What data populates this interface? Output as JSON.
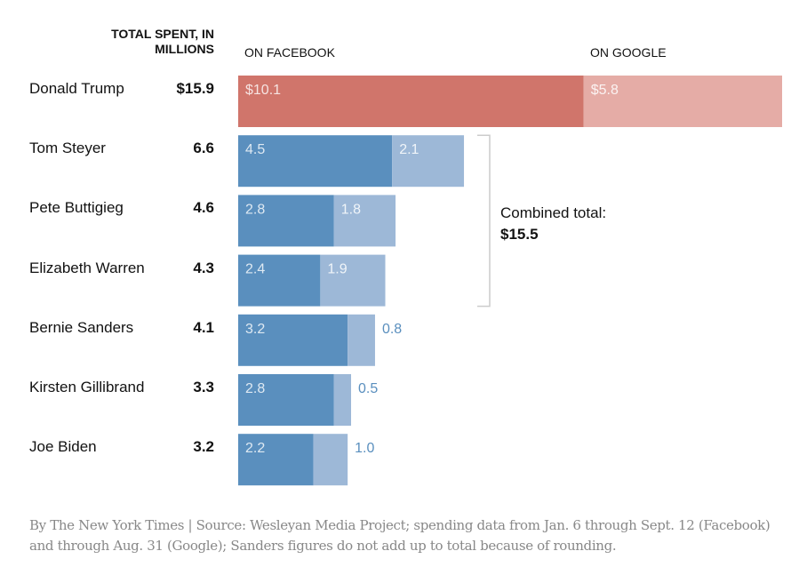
{
  "chart_data": {
    "type": "bar",
    "orientation": "horizontal",
    "stacked": true,
    "title": "",
    "header_total": "TOTAL SPENT, IN MILLIONS",
    "header_series": [
      "ON FACEBOOK",
      "ON GOOGLE"
    ],
    "xlabel": "",
    "ylabel": "",
    "categories": [
      "Donald Trump",
      "Tom Steyer",
      "Pete Buttigieg",
      "Elizabeth Warren",
      "Bernie Sanders",
      "Kirsten Gillibrand",
      "Joe Biden"
    ],
    "totals": [
      "$15.9",
      "6.6",
      "4.6",
      "4.3",
      "4.1",
      "3.3",
      "3.2"
    ],
    "total_values": [
      15.9,
      6.6,
      4.6,
      4.3,
      4.1,
      3.3,
      3.2
    ],
    "series": [
      {
        "name": "ON FACEBOOK",
        "values": [
          10.1,
          4.5,
          2.8,
          2.4,
          3.2,
          2.8,
          2.2
        ],
        "labels": [
          "$10.1",
          "4.5",
          "2.8",
          "2.4",
          "3.2",
          "2.8",
          "2.2"
        ]
      },
      {
        "name": "ON GOOGLE",
        "values": [
          5.8,
          2.1,
          1.8,
          1.9,
          0.8,
          0.5,
          1.0
        ],
        "labels": [
          "$5.8",
          "2.1",
          "1.8",
          "1.9",
          "0.8",
          "0.5",
          "1.0"
        ]
      }
    ],
    "colors": {
      "republican_facebook": "#d0756b",
      "republican_google": "#e5aca6",
      "democrat_facebook": "#5a8fbe",
      "democrat_google": "#9db8d7",
      "outside_label": "#5a8fbe",
      "inside_label": "#ffffff",
      "bracket": "#cccccc"
    },
    "xlim": [
      0,
      15.9
    ],
    "annotation": {
      "text": "Combined total:",
      "value": "$15.5",
      "spans": [
        "Tom Steyer",
        "Pete Buttigieg",
        "Elizabeth Warren"
      ]
    }
  },
  "footer": "By The New York Times | Source: Wesleyan Media Project; spending data from Jan. 6 through Sept. 12 (Facebook) and through Aug. 31 (Google); Sanders figures do not add up to total because of rounding."
}
